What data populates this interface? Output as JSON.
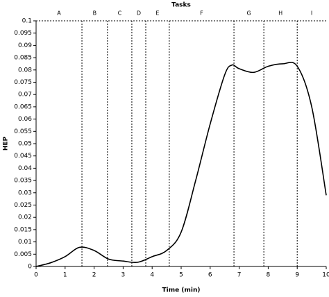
{
  "chart_data": {
    "type": "line",
    "title": "Tasks",
    "x_label": "Time (min)",
    "y_label": "HEP",
    "x": [
      0,
      0.5,
      1,
      1.5,
      2,
      2.5,
      3,
      3.5,
      4,
      4.5,
      5,
      5.5,
      6,
      6.5,
      6.75,
      7,
      7.5,
      8,
      8.5,
      9,
      9.5,
      10
    ],
    "series": [
      {
        "name": "HEP",
        "color": "#000000",
        "values": [
          0,
          0.0015,
          0.004,
          0.0078,
          0.0065,
          0.003,
          0.0022,
          0.0017,
          0.004,
          0.0065,
          0.014,
          0.035,
          0.058,
          0.078,
          0.082,
          0.0805,
          0.079,
          0.0815,
          0.0825,
          0.0815,
          0.065,
          0.029
        ]
      }
    ],
    "tasks": [
      "A",
      "B",
      "C",
      "D",
      "E",
      "F",
      "G",
      "H",
      "I"
    ],
    "task_boundaries": [
      1.58,
      2.46,
      3.3,
      3.78,
      4.59,
      6.82,
      7.85,
      9.0
    ],
    "xlim": [
      0,
      10
    ],
    "xticks": [
      0,
      1,
      2,
      3,
      4,
      5,
      6,
      7,
      8,
      9,
      10
    ],
    "ylim": [
      0,
      0.1
    ],
    "yticks": [
      0,
      0.005,
      0.01,
      0.015,
      0.02,
      0.025,
      0.03,
      0.035,
      0.04,
      0.045,
      0.05,
      0.055,
      0.06,
      0.065,
      0.07,
      0.075,
      0.08,
      0.085,
      0.09,
      0.095,
      0.1
    ]
  }
}
